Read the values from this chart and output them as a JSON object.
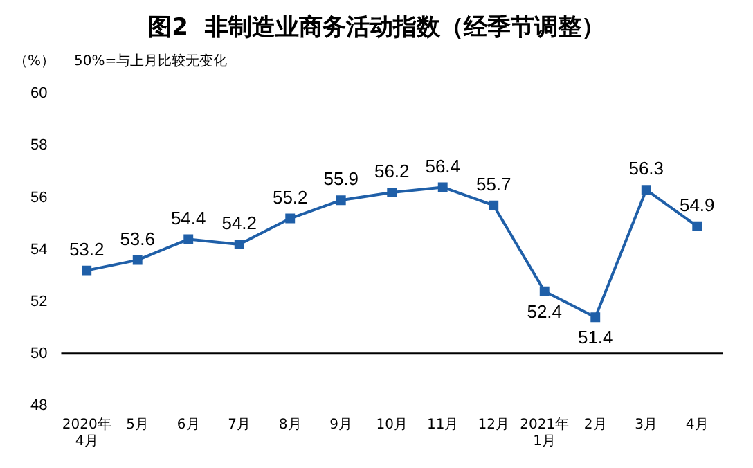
{
  "chart_data": {
    "type": "line",
    "title": "图2  非制造业商务活动指数（经季节调整）",
    "ylabel": "（%）",
    "annotations": [
      "50%=与上月比较无变化"
    ],
    "categories": [
      "2020年\n4月",
      "5月",
      "6月",
      "7月",
      "8月",
      "9月",
      "10月",
      "11月",
      "12月",
      "2021年\n1月",
      "2月",
      "3月",
      "4月"
    ],
    "series": [
      {
        "color": "#1f5fa8",
        "values": [
          53.2,
          53.6,
          54.4,
          54.2,
          55.2,
          55.9,
          56.2,
          56.4,
          55.7,
          52.4,
          51.4,
          56.3,
          54.9
        ]
      }
    ],
    "ylim": [
      48,
      60
    ],
    "yticks": [
      48,
      50,
      52,
      54,
      56,
      58,
      60
    ],
    "grid": false,
    "legend": false,
    "marker": "square",
    "line_style": "solid",
    "data_labels": true,
    "ref_lines": [
      {
        "axis": "y",
        "value": 50,
        "color": "#000000"
      }
    ]
  }
}
